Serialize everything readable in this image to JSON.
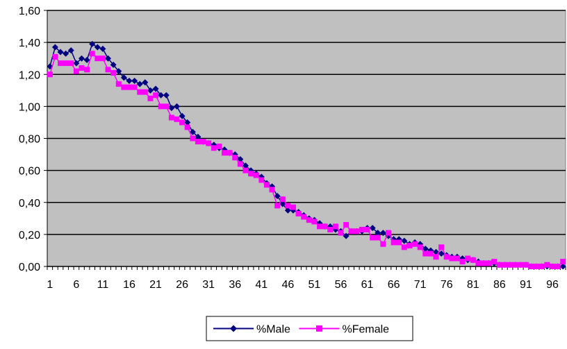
{
  "chart_data": {
    "type": "line",
    "title": "",
    "xlabel": "",
    "ylabel": "",
    "x": [
      1,
      2,
      3,
      4,
      5,
      6,
      7,
      8,
      9,
      10,
      11,
      12,
      13,
      14,
      15,
      16,
      17,
      18,
      19,
      20,
      21,
      22,
      23,
      24,
      25,
      26,
      27,
      28,
      29,
      30,
      31,
      32,
      33,
      34,
      35,
      36,
      37,
      38,
      39,
      40,
      41,
      42,
      43,
      44,
      45,
      46,
      47,
      48,
      49,
      50,
      51,
      52,
      53,
      54,
      55,
      56,
      57,
      58,
      59,
      60,
      61,
      62,
      63,
      64,
      65,
      66,
      67,
      68,
      69,
      70,
      71,
      72,
      73,
      74,
      75,
      76,
      77,
      78,
      79,
      80,
      81,
      82,
      83,
      84,
      85,
      86,
      87,
      88,
      89,
      90,
      91,
      92,
      93,
      94,
      95,
      96,
      97,
      98
    ],
    "xlim": [
      1,
      98
    ],
    "ylim": [
      0,
      1.6
    ],
    "y_ticks": [
      "0,00",
      "0,20",
      "0,40",
      "0,60",
      "0,80",
      "1,00",
      "1,20",
      "1,40",
      "1,60"
    ],
    "y_tick_values": [
      0,
      0.2,
      0.4,
      0.6,
      0.8,
      1.0,
      1.2,
      1.4,
      1.6
    ],
    "x_tick_labels": [
      "1",
      "6",
      "11",
      "16",
      "21",
      "26",
      "31",
      "36",
      "41",
      "46",
      "51",
      "56",
      "61",
      "66",
      "71",
      "76",
      "81",
      "86",
      "91",
      "96"
    ],
    "x_tick_values": [
      1,
      6,
      11,
      16,
      21,
      26,
      31,
      36,
      41,
      46,
      51,
      56,
      61,
      66,
      71,
      76,
      81,
      86,
      91,
      96
    ],
    "grid": true,
    "legend": "bottom-center",
    "plot_background": "#c0c0c0",
    "series": [
      {
        "name": "%Male",
        "color": "#000080",
        "marker": "diamond",
        "values": [
          1.25,
          1.37,
          1.34,
          1.33,
          1.35,
          1.27,
          1.3,
          1.29,
          1.39,
          1.37,
          1.36,
          1.3,
          1.26,
          1.22,
          1.18,
          1.16,
          1.16,
          1.14,
          1.15,
          1.1,
          1.11,
          1.07,
          1.07,
          0.99,
          1.0,
          0.94,
          0.9,
          0.84,
          0.81,
          0.78,
          0.77,
          0.76,
          0.74,
          0.73,
          0.71,
          0.7,
          0.67,
          0.63,
          0.6,
          0.58,
          0.56,
          0.52,
          0.5,
          0.44,
          0.39,
          0.35,
          0.35,
          0.34,
          0.32,
          0.3,
          0.29,
          0.27,
          0.25,
          0.25,
          0.23,
          0.22,
          0.19,
          0.22,
          0.22,
          0.22,
          0.24,
          0.24,
          0.21,
          0.21,
          0.19,
          0.17,
          0.17,
          0.16,
          0.14,
          0.15,
          0.14,
          0.11,
          0.1,
          0.09,
          0.08,
          0.07,
          0.06,
          0.06,
          0.05,
          0.04,
          0.04,
          0.03,
          0.02,
          0.02,
          0.02,
          0.01,
          0.01,
          0.01,
          0.01,
          0.01,
          0.01,
          0.0,
          0.0,
          0.0,
          0.0,
          0.0,
          0.0,
          0.0
        ]
      },
      {
        "name": "%Female",
        "color": "#ff00ff",
        "marker": "square",
        "values": [
          1.2,
          1.31,
          1.27,
          1.27,
          1.27,
          1.22,
          1.24,
          1.23,
          1.33,
          1.3,
          1.3,
          1.23,
          1.21,
          1.14,
          1.12,
          1.12,
          1.12,
          1.09,
          1.09,
          1.05,
          1.07,
          1.0,
          1.0,
          0.93,
          0.92,
          0.9,
          0.87,
          0.8,
          0.78,
          0.78,
          0.77,
          0.74,
          0.75,
          0.71,
          0.71,
          0.68,
          0.64,
          0.6,
          0.58,
          0.57,
          0.54,
          0.51,
          0.48,
          0.38,
          0.42,
          0.38,
          0.37,
          0.33,
          0.31,
          0.29,
          0.28,
          0.25,
          0.25,
          0.23,
          0.25,
          0.21,
          0.26,
          0.22,
          0.22,
          0.23,
          0.23,
          0.18,
          0.18,
          0.14,
          0.21,
          0.15,
          0.15,
          0.12,
          0.13,
          0.14,
          0.12,
          0.08,
          0.08,
          0.06,
          0.12,
          0.06,
          0.05,
          0.05,
          0.03,
          0.05,
          0.04,
          0.02,
          0.02,
          0.02,
          0.03,
          0.01,
          0.01,
          0.01,
          0.01,
          0.01,
          0.01,
          0.0,
          0.0,
          0.0,
          0.01,
          0.0,
          0.0,
          0.03
        ]
      }
    ]
  }
}
